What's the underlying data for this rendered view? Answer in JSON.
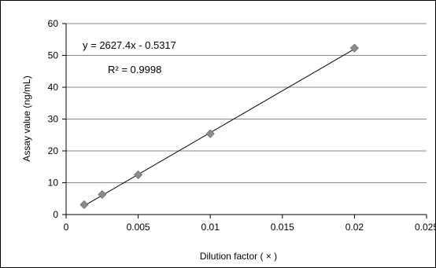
{
  "chart_data": {
    "type": "scatter",
    "title": "",
    "xlabel": "Dilution factor ( × )",
    "ylabel": "Assay value (ng/mL)",
    "xlim": [
      0,
      0.025
    ],
    "ylim": [
      0,
      60
    ],
    "x_ticks": [
      0,
      0.005,
      0.01,
      0.015,
      0.02,
      0.025
    ],
    "x_tick_labels": [
      "0",
      "0.005",
      "0.01",
      "0.015",
      "0.02",
      "0.025"
    ],
    "y_ticks": [
      0,
      10,
      20,
      30,
      40,
      50,
      60
    ],
    "y_tick_labels": [
      "0",
      "10",
      "20",
      "30",
      "40",
      "50",
      "60"
    ],
    "grid": "horizontal",
    "legend": "none",
    "series": [
      {
        "marker": "diamond",
        "color": "#8c8c8c",
        "x": [
          0.00125,
          0.0025,
          0.005,
          0.01,
          0.02
        ],
        "y": [
          3.1,
          6.3,
          12.5,
          25.4,
          52.3
        ]
      }
    ],
    "trendline": {
      "type": "linear",
      "slope": 2627.4,
      "intercept": -0.5317,
      "x_range": [
        0.00125,
        0.02
      ],
      "equation_label": "y  =  2627.4x  -  0.5317",
      "r2_label": "R²  =  0.9998"
    }
  }
}
